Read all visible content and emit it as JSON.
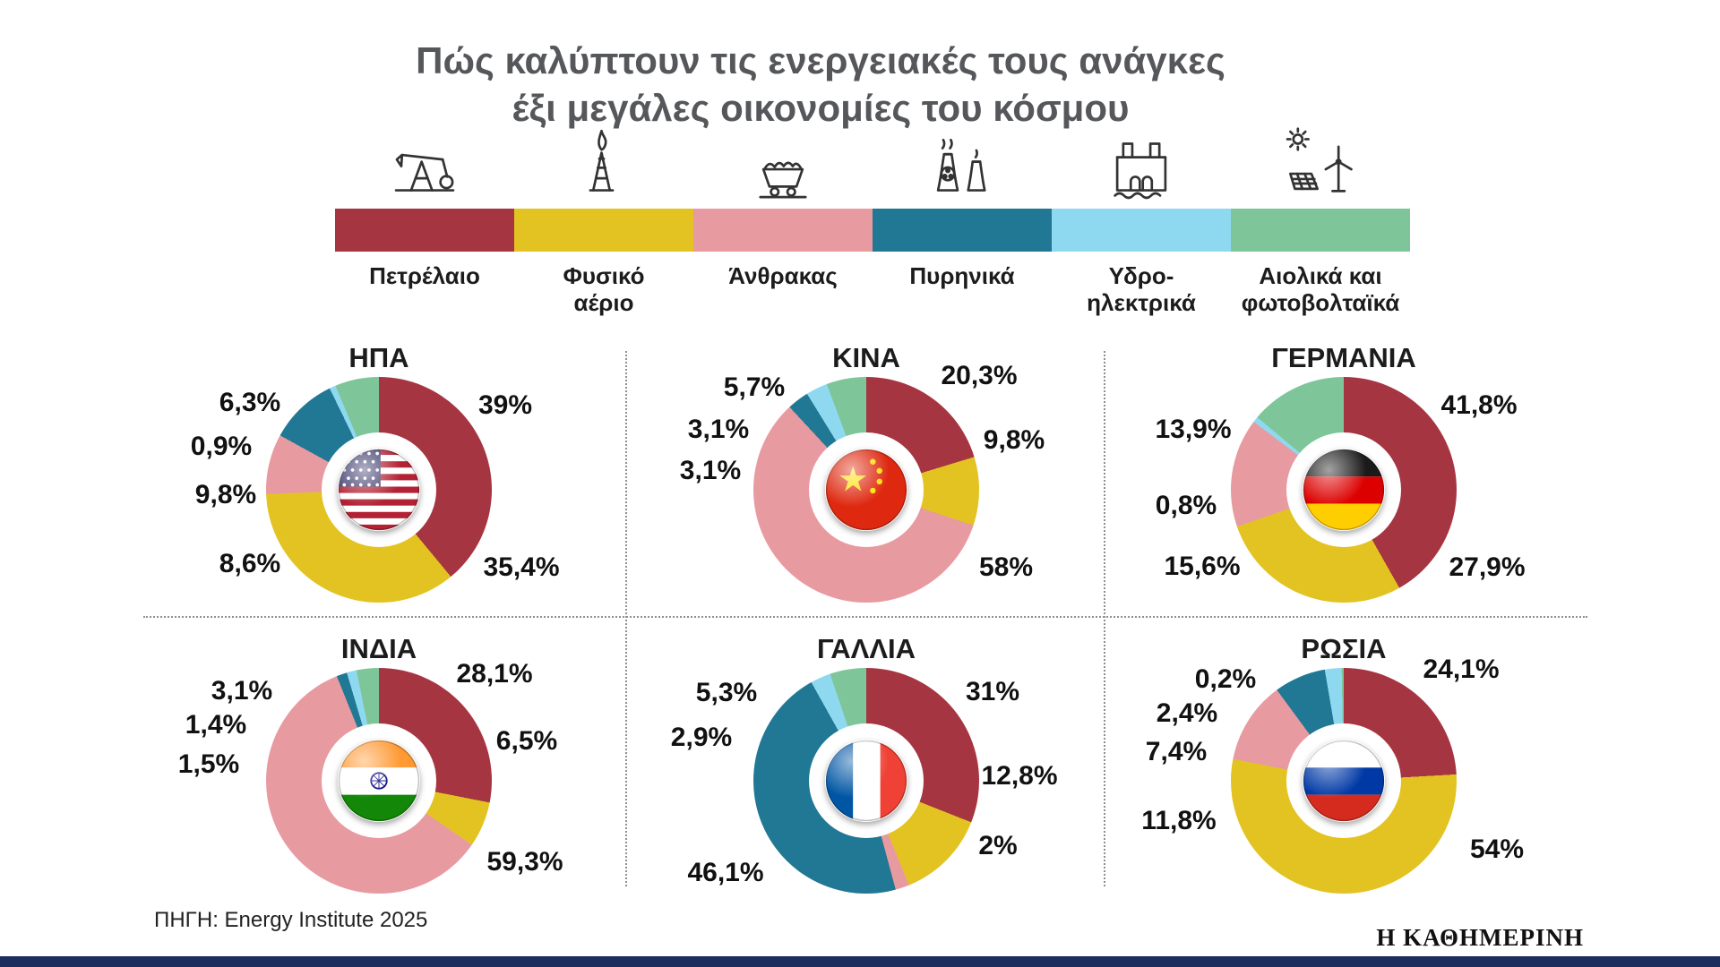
{
  "title": {
    "line1": "Πώς καλύπτουν τις ενεργειακές τους ανάγκες",
    "line2": "έξι μεγάλες οικονομίες του κόσμου"
  },
  "legend": {
    "items": [
      {
        "label": "Πετρέλαιο",
        "icon": "oil-pump-icon"
      },
      {
        "label": "Φυσικό\nαέριο",
        "icon": "gas-flare-icon"
      },
      {
        "label": "Άνθρακας",
        "icon": "coal-cart-icon"
      },
      {
        "label": "Πυρηνικά",
        "icon": "nuclear-plant-icon"
      },
      {
        "label": "Υδρο-\nηλεκτρικά",
        "icon": "hydro-dam-icon"
      },
      {
        "label": "Αιολικά και\nφωτοβολταϊκά",
        "icon": "wind-solar-icon"
      }
    ]
  },
  "chart_data": {
    "type": "pie",
    "subtype": "donut",
    "unit": "%",
    "title": "Πώς καλύπτουν τις ενεργειακές τους ανάγκες έξι μεγάλες οικονομίες του κόσμου",
    "categories": [
      "Πετρέλαιο",
      "Φυσικό αέριο",
      "Άνθρακας",
      "Πυρηνικά",
      "Υδροηλεκτρικά",
      "Αιολικά και φωτοβολταϊκά"
    ],
    "colors": [
      "#A63542",
      "#E3C322",
      "#E89AA1",
      "#207894",
      "#8ED9F0",
      "#7EC69A"
    ],
    "legend_position": "top",
    "charts": [
      {
        "country": "ΗΠΑ",
        "flag": "us",
        "values": [
          39,
          35.4,
          8.6,
          9.8,
          0.9,
          6.3
        ],
        "labels": [
          "39%",
          "35,4%",
          "8,6%",
          "9,8%",
          "0,9%",
          "6,3%"
        ]
      },
      {
        "country": "ΚΙΝΑ",
        "flag": "cn",
        "values": [
          20.3,
          9.8,
          58,
          3.1,
          3.1,
          5.7
        ],
        "labels": [
          "20,3%",
          "9,8%",
          "58%",
          "3,1%",
          "3,1%",
          "5,7%"
        ]
      },
      {
        "country": "ΓΕΡΜΑΝΙΑ",
        "flag": "de",
        "values": [
          41.8,
          27.9,
          15.6,
          0,
          0.8,
          13.9
        ],
        "labels": [
          "41,8%",
          "27,9%",
          "15,6%",
          "",
          "0,8%",
          "13,9%"
        ]
      },
      {
        "country": "ΙΝΔΙΑ",
        "flag": "in",
        "values": [
          28.1,
          6.5,
          59.3,
          1.5,
          1.4,
          3.1
        ],
        "labels": [
          "28,1%",
          "6,5%",
          "59,3%",
          "1,5%",
          "1,4%",
          "3,1%"
        ]
      },
      {
        "country": "ΓΑΛΛΙΑ",
        "flag": "fr",
        "values": [
          31,
          12.8,
          2,
          46.1,
          2.9,
          5.3
        ],
        "labels": [
          "31%",
          "12,8%",
          "2%",
          "46,1%",
          "2,9%",
          "5,3%"
        ]
      },
      {
        "country": "ΡΩΣΙΑ",
        "flag": "ru",
        "values": [
          24.1,
          54,
          11.8,
          7.4,
          2.4,
          0.2
        ],
        "labels": [
          "24,1%",
          "54%",
          "11,8%",
          "7,4%",
          "2,4%",
          "0,2%"
        ]
      }
    ]
  },
  "source": "ΠΗΓΗ: Energy Institute 2025",
  "logo": "Η ΚΑΘΗΜΕΡΙΝΗ"
}
